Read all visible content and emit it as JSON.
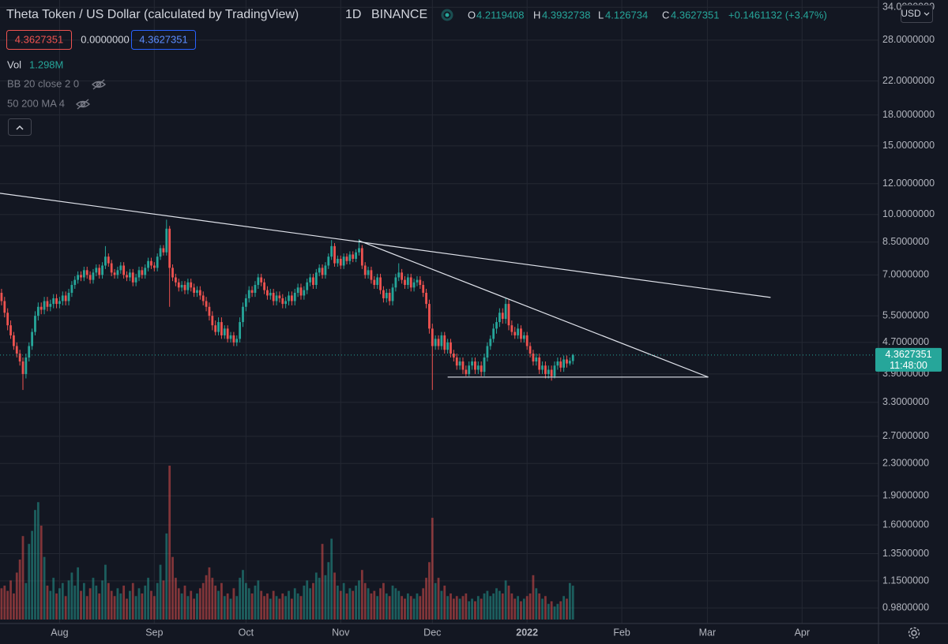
{
  "chart_data": {
    "type": "candlestick",
    "title": "Theta Token / US Dollar (calculated by TradingView)",
    "interval": "1D",
    "exchange": "BINANCE",
    "legend": {
      "open": "O",
      "high": "H",
      "low": "L",
      "close": "C"
    },
    "change_label": "+0.1461132 (+3.47%)",
    "sell_price": "4.3627351",
    "spread": "0.0000000",
    "buy_price": "4.3627351",
    "volume_legend_value": "1.298M",
    "indicators": [
      "BB 20 close 2 0",
      "50 200 MA 4"
    ],
    "currency": "USD",
    "countdown": "11:48:00",
    "log_scale": true,
    "grid": true,
    "up_color": "#26a69a",
    "down_color": "#ef5350",
    "xlim": [
      -0.5,
      287
    ],
    "xticks": [
      {
        "value": 19,
        "label": "Aug"
      },
      {
        "value": 50,
        "label": "Sep"
      },
      {
        "value": 80,
        "label": "Oct"
      },
      {
        "value": 111,
        "label": "Nov"
      },
      {
        "value": 141,
        "label": "Dec"
      },
      {
        "value": 172,
        "label": "2022"
      },
      {
        "value": 203,
        "label": "Feb"
      },
      {
        "value": 231,
        "label": "Mar"
      },
      {
        "value": 262,
        "label": "Apr"
      }
    ],
    "ylim": [
      0.894,
      35.5
    ],
    "yticks": [
      {
        "value": 34,
        "label": "34.0000000"
      },
      {
        "value": 28,
        "label": "28.0000000"
      },
      {
        "value": 22,
        "label": "22.0000000"
      },
      {
        "value": 18,
        "label": "18.0000000"
      },
      {
        "value": 15,
        "label": "15.0000000"
      },
      {
        "value": 12,
        "label": "12.0000000"
      },
      {
        "value": 10,
        "label": "10.0000000"
      },
      {
        "value": 8.5,
        "label": "8.5000000"
      },
      {
        "value": 7,
        "label": "7.0000000"
      },
      {
        "value": 5.5,
        "label": "5.5000000"
      },
      {
        "value": 4.7,
        "label": "4.7000000"
      },
      {
        "value": 3.9,
        "label": "3.9000000"
      },
      {
        "value": 3.3,
        "label": "3.3000000"
      },
      {
        "value": 2.7,
        "label": "2.7000000"
      },
      {
        "value": 2.3,
        "label": "2.3000000"
      },
      {
        "value": 1.9,
        "label": "1.9000000"
      },
      {
        "value": 1.6,
        "label": "1.6000000"
      },
      {
        "value": 1.35,
        "label": "1.3500000"
      },
      {
        "value": 1.15,
        "label": "1.1500000"
      },
      {
        "value": 0.98,
        "label": "0.9800000"
      }
    ],
    "trendlines": [
      {
        "x": [
          -0.5,
          251.7
        ],
        "y": [
          11.34,
          6.13
        ]
      },
      {
        "x": [
          117,
          231.3
        ],
        "y": [
          8.57,
          3.83
        ]
      },
      {
        "x": [
          146,
          231.3
        ],
        "y": [
          3.83,
          3.83
        ]
      }
    ],
    "ohlc": [
      [
        6.3,
        6.45,
        5.85,
        6.0
      ],
      [
        6.0,
        6.15,
        5.45,
        5.6
      ],
      [
        5.6,
        5.75,
        5.05,
        5.2
      ],
      [
        5.2,
        5.35,
        4.8,
        4.9
      ],
      [
        4.9,
        5.0,
        4.5,
        4.6
      ],
      [
        4.6,
        4.7,
        4.3,
        4.4
      ],
      [
        4.4,
        4.5,
        4.1,
        4.2
      ],
      [
        4.2,
        4.3,
        3.55,
        3.9
      ],
      [
        3.9,
        4.4,
        3.8,
        4.3
      ],
      [
        4.3,
        4.7,
        4.2,
        4.6
      ],
      [
        4.6,
        5.1,
        4.5,
        5.0
      ],
      [
        5.0,
        5.65,
        4.9,
        5.5
      ],
      [
        5.5,
        5.95,
        5.35,
        5.8
      ],
      [
        5.8,
        5.95,
        5.55,
        5.7
      ],
      [
        5.7,
        6.15,
        5.55,
        6.0
      ],
      [
        6.0,
        6.15,
        5.65,
        5.8
      ],
      [
        5.8,
        6.05,
        5.65,
        5.9
      ],
      [
        5.9,
        6.25,
        5.75,
        6.1
      ],
      [
        6.1,
        6.25,
        5.75,
        5.9
      ],
      [
        5.9,
        6.15,
        5.75,
        6.0
      ],
      [
        6.0,
        6.35,
        5.85,
        6.2
      ],
      [
        6.2,
        6.35,
        5.85,
        6.0
      ],
      [
        6.0,
        6.45,
        5.85,
        6.3
      ],
      [
        6.3,
        6.75,
        6.15,
        6.6
      ],
      [
        6.6,
        6.95,
        6.45,
        6.8
      ],
      [
        6.8,
        7.15,
        6.65,
        7.0
      ],
      [
        7.0,
        7.15,
        6.75,
        6.9
      ],
      [
        6.9,
        7.35,
        6.75,
        7.2
      ],
      [
        7.2,
        7.35,
        6.85,
        7.0
      ],
      [
        7.0,
        7.15,
        6.65,
        6.8
      ],
      [
        6.8,
        7.25,
        6.65,
        7.1
      ],
      [
        7.1,
        7.45,
        6.95,
        7.3
      ],
      [
        7.3,
        7.45,
        6.85,
        7.0
      ],
      [
        7.0,
        7.55,
        6.85,
        7.4
      ],
      [
        7.4,
        8.3,
        7.25,
        7.8
      ],
      [
        7.8,
        7.95,
        7.35,
        7.5
      ],
      [
        7.5,
        7.65,
        6.95,
        7.1
      ],
      [
        7.1,
        7.25,
        6.85,
        7.0
      ],
      [
        7.0,
        7.35,
        6.85,
        7.2
      ],
      [
        7.2,
        7.55,
        7.05,
        7.4
      ],
      [
        7.4,
        7.55,
        6.85,
        7.0
      ],
      [
        7.0,
        7.15,
        6.75,
        6.9
      ],
      [
        6.9,
        7.25,
        6.75,
        7.1
      ],
      [
        7.1,
        7.25,
        6.55,
        6.7
      ],
      [
        6.7,
        7.05,
        6.55,
        6.9
      ],
      [
        6.9,
        7.35,
        6.75,
        7.2
      ],
      [
        7.2,
        7.35,
        6.85,
        7.0
      ],
      [
        7.0,
        7.45,
        6.85,
        7.3
      ],
      [
        7.3,
        7.75,
        7.15,
        7.6
      ],
      [
        7.6,
        7.75,
        7.25,
        7.4
      ],
      [
        7.4,
        7.55,
        7.15,
        7.3
      ],
      [
        7.3,
        7.95,
        7.15,
        7.8
      ],
      [
        7.8,
        8.35,
        7.65,
        8.2
      ],
      [
        8.2,
        8.35,
        7.85,
        8.0
      ],
      [
        8.0,
        9.7,
        7.85,
        9.2
      ],
      [
        9.2,
        9.35,
        5.8,
        7.3
      ],
      [
        7.3,
        7.45,
        6.75,
        6.9
      ],
      [
        6.9,
        7.05,
        6.55,
        6.7
      ],
      [
        6.7,
        6.85,
        6.35,
        6.5
      ],
      [
        6.5,
        6.75,
        6.35,
        6.6
      ],
      [
        6.6,
        6.75,
        6.25,
        6.4
      ],
      [
        6.4,
        6.85,
        6.25,
        6.7
      ],
      [
        6.7,
        6.85,
        6.35,
        6.5
      ],
      [
        6.5,
        6.65,
        6.15,
        6.3
      ],
      [
        6.3,
        6.55,
        6.15,
        6.4
      ],
      [
        6.4,
        6.55,
        6.05,
        6.2
      ],
      [
        6.2,
        6.35,
        5.85,
        6.0
      ],
      [
        6.0,
        6.15,
        5.65,
        5.8
      ],
      [
        5.8,
        5.95,
        5.35,
        5.5
      ],
      [
        5.5,
        5.65,
        5.05,
        5.2
      ],
      [
        5.2,
        5.35,
        4.9,
        5.0
      ],
      [
        5.0,
        5.45,
        4.9,
        5.3
      ],
      [
        5.3,
        5.45,
        4.8,
        4.9
      ],
      [
        4.9,
        5.2,
        4.8,
        5.1
      ],
      [
        5.1,
        5.2,
        4.7,
        4.8
      ],
      [
        4.8,
        5.0,
        4.7,
        4.9
      ],
      [
        4.9,
        5.0,
        4.6,
        4.7
      ],
      [
        4.7,
        4.9,
        4.6,
        4.8
      ],
      [
        4.8,
        5.45,
        4.7,
        5.3
      ],
      [
        5.3,
        5.95,
        5.15,
        5.8
      ],
      [
        5.8,
        6.25,
        5.65,
        6.1
      ],
      [
        6.1,
        6.55,
        5.95,
        6.4
      ],
      [
        6.4,
        6.55,
        6.15,
        6.3
      ],
      [
        6.3,
        6.75,
        6.15,
        6.6
      ],
      [
        6.6,
        7.05,
        6.45,
        6.9
      ],
      [
        6.9,
        7.05,
        6.55,
        6.7
      ],
      [
        6.7,
        6.85,
        6.25,
        6.4
      ],
      [
        6.4,
        6.55,
        6.05,
        6.2
      ],
      [
        6.2,
        6.45,
        6.05,
        6.3
      ],
      [
        6.3,
        6.45,
        5.85,
        6.0
      ],
      [
        6.0,
        6.35,
        5.85,
        6.2
      ],
      [
        6.2,
        6.35,
        5.95,
        6.1
      ],
      [
        6.1,
        6.25,
        5.75,
        5.9
      ],
      [
        5.9,
        6.15,
        5.75,
        6.0
      ],
      [
        6.0,
        6.35,
        5.85,
        6.2
      ],
      [
        6.2,
        6.35,
        5.85,
        6.0
      ],
      [
        6.0,
        6.45,
        5.85,
        6.3
      ],
      [
        6.3,
        6.65,
        6.15,
        6.5
      ],
      [
        6.5,
        6.65,
        6.05,
        6.2
      ],
      [
        6.2,
        6.55,
        6.05,
        6.4
      ],
      [
        6.4,
        6.85,
        6.25,
        6.7
      ],
      [
        6.7,
        7.05,
        6.55,
        6.9
      ],
      [
        6.9,
        7.05,
        6.45,
        6.6
      ],
      [
        6.6,
        7.25,
        6.45,
        7.1
      ],
      [
        7.1,
        7.45,
        6.95,
        7.3
      ],
      [
        7.3,
        7.45,
        6.85,
        7.0
      ],
      [
        7.0,
        7.55,
        6.85,
        7.4
      ],
      [
        7.4,
        7.95,
        7.25,
        7.8
      ],
      [
        7.8,
        8.6,
        7.65,
        8.3
      ],
      [
        8.3,
        8.45,
        7.35,
        7.5
      ],
      [
        7.5,
        7.85,
        7.35,
        7.7
      ],
      [
        7.7,
        7.85,
        7.25,
        7.4
      ],
      [
        7.4,
        7.95,
        7.25,
        7.8
      ],
      [
        7.8,
        7.95,
        7.45,
        7.6
      ],
      [
        7.6,
        8.05,
        7.45,
        7.9
      ],
      [
        7.9,
        8.05,
        7.55,
        7.7
      ],
      [
        7.7,
        8.15,
        7.55,
        8.0
      ],
      [
        8.0,
        8.65,
        7.85,
        8.2
      ],
      [
        8.2,
        8.35,
        7.25,
        7.4
      ],
      [
        7.4,
        7.55,
        6.85,
        7.0
      ],
      [
        7.0,
        7.35,
        6.85,
        7.2
      ],
      [
        7.2,
        7.35,
        6.65,
        6.8
      ],
      [
        6.8,
        6.95,
        6.45,
        6.6
      ],
      [
        6.6,
        7.05,
        6.45,
        6.9
      ],
      [
        6.9,
        7.05,
        6.25,
        6.4
      ],
      [
        6.4,
        6.55,
        5.95,
        6.1
      ],
      [
        6.1,
        6.45,
        5.95,
        6.3
      ],
      [
        6.3,
        6.45,
        5.85,
        6.0
      ],
      [
        6.0,
        6.65,
        5.85,
        6.5
      ],
      [
        6.5,
        7.05,
        6.35,
        6.9
      ],
      [
        6.9,
        7.5,
        6.75,
        7.1
      ],
      [
        7.1,
        7.25,
        6.65,
        6.8
      ],
      [
        6.8,
        6.95,
        6.45,
        6.6
      ],
      [
        6.6,
        7.05,
        6.45,
        6.9
      ],
      [
        6.9,
        7.05,
        6.35,
        6.5
      ],
      [
        6.5,
        6.85,
        6.35,
        6.7
      ],
      [
        6.7,
        6.95,
        6.55,
        6.8
      ],
      [
        6.8,
        6.95,
        6.45,
        6.6
      ],
      [
        6.6,
        6.75,
        6.15,
        6.3
      ],
      [
        6.3,
        6.45,
        5.75,
        5.9
      ],
      [
        5.9,
        6.05,
        4.95,
        5.1
      ],
      [
        5.1,
        5.25,
        3.55,
        4.6
      ],
      [
        4.6,
        4.9,
        4.5,
        4.8
      ],
      [
        4.8,
        4.9,
        4.5,
        4.6
      ],
      [
        4.6,
        5.0,
        4.5,
        4.9
      ],
      [
        4.9,
        5.0,
        4.4,
        4.5
      ],
      [
        4.5,
        4.8,
        4.4,
        4.7
      ],
      [
        4.7,
        4.8,
        4.3,
        4.4
      ],
      [
        4.4,
        4.5,
        4.2,
        4.3
      ],
      [
        4.3,
        4.4,
        4.0,
        4.1
      ],
      [
        4.1,
        4.3,
        4.0,
        4.2
      ],
      [
        4.2,
        4.3,
        3.9,
        4.0
      ],
      [
        4.0,
        4.1,
        3.85,
        3.9
      ],
      [
        3.9,
        4.2,
        3.85,
        4.1
      ],
      [
        4.1,
        4.3,
        4.0,
        4.2
      ],
      [
        4.2,
        4.3,
        3.9,
        4.0
      ],
      [
        4.0,
        4.2,
        3.9,
        4.1
      ],
      [
        4.1,
        4.2,
        3.85,
        3.95
      ],
      [
        3.95,
        4.4,
        3.85,
        4.3
      ],
      [
        4.3,
        4.7,
        4.2,
        4.6
      ],
      [
        4.6,
        4.9,
        4.5,
        4.8
      ],
      [
        4.8,
        5.25,
        4.7,
        5.1
      ],
      [
        5.1,
        5.45,
        4.95,
        5.3
      ],
      [
        5.3,
        5.75,
        5.15,
        5.6
      ],
      [
        5.6,
        5.75,
        5.25,
        5.4
      ],
      [
        5.4,
        6.1,
        5.25,
        5.9
      ],
      [
        5.9,
        6.05,
        5.05,
        5.2
      ],
      [
        5.2,
        5.35,
        4.9,
        5.0
      ],
      [
        5.0,
        5.15,
        4.8,
        4.9
      ],
      [
        4.9,
        5.25,
        4.8,
        5.1
      ],
      [
        5.1,
        5.2,
        4.7,
        4.8
      ],
      [
        4.8,
        5.0,
        4.7,
        4.9
      ],
      [
        4.9,
        5.0,
        4.5,
        4.6
      ],
      [
        4.6,
        4.7,
        4.3,
        4.4
      ],
      [
        4.4,
        4.5,
        4.1,
        4.2
      ],
      [
        4.2,
        4.4,
        4.1,
        4.3
      ],
      [
        4.3,
        4.4,
        3.9,
        4.0
      ],
      [
        4.0,
        4.2,
        3.9,
        4.1
      ],
      [
        4.1,
        4.2,
        3.8,
        3.9
      ],
      [
        3.9,
        4.1,
        3.8,
        4.0
      ],
      [
        4.0,
        4.1,
        3.75,
        3.85
      ],
      [
        3.85,
        4.2,
        3.8,
        4.1
      ],
      [
        4.1,
        4.3,
        4.0,
        4.2
      ],
      [
        4.2,
        4.3,
        3.95,
        4.05
      ],
      [
        4.05,
        4.35,
        3.95,
        4.25
      ],
      [
        4.25,
        4.35,
        4.05,
        4.15
      ],
      [
        4.15,
        4.3,
        4.1,
        4.2166219
      ],
      [
        4.2119408,
        4.3932738,
        4.126734,
        4.3627351
      ]
    ],
    "volume": {
      "name": "Vol",
      "values": [
        1.2,
        1.3,
        1.1,
        1.5,
        1.0,
        1.8,
        2.3,
        3.2,
        1.4,
        2.9,
        3.4,
        4.2,
        4.5,
        3.6,
        2.4,
        1.3,
        1.1,
        1.6,
        1.0,
        1.2,
        1.4,
        0.9,
        1.5,
        1.8,
        1.3,
        2.0,
        1.1,
        1.4,
        0.9,
        1.2,
        1.6,
        1.3,
        1.0,
        1.5,
        2.1,
        1.4,
        1.1,
        0.9,
        1.2,
        1.0,
        1.3,
        0.8,
        1.1,
        1.4,
        0.9,
        1.2,
        1.0,
        1.3,
        1.6,
        1.1,
        0.9,
        1.4,
        2.1,
        1.5,
        3.3,
        5.9,
        2.4,
        1.6,
        1.2,
        1.0,
        1.3,
        0.9,
        1.1,
        0.8,
        1.0,
        1.2,
        1.4,
        1.7,
        2.0,
        1.6,
        1.3,
        1.1,
        1.4,
        0.9,
        1.0,
        0.8,
        1.2,
        0.9,
        1.6,
        1.9,
        1.4,
        1.2,
        1.0,
        1.3,
        1.5,
        1.1,
        0.9,
        1.0,
        0.8,
        1.1,
        0.9,
        0.8,
        1.0,
        0.9,
        1.1,
        0.8,
        1.2,
        1.0,
        0.9,
        1.3,
        1.5,
        1.2,
        1.4,
        1.8,
        1.6,
        2.9,
        1.7,
        2.2,
        3.1,
        1.8,
        1.3,
        1.1,
        1.4,
        1.0,
        1.2,
        1.1,
        1.3,
        1.5,
        1.9,
        1.4,
        1.2,
        1.0,
        1.1,
        0.9,
        1.2,
        1.4,
        1.0,
        0.9,
        1.3,
        1.2,
        1.1,
        0.9,
        0.8,
        1.0,
        0.9,
        0.8,
        1.0,
        0.9,
        1.2,
        1.6,
        2.2,
        3.9,
        1.4,
        1.6,
        1.1,
        1.3,
        0.9,
        1.0,
        0.8,
        0.9,
        0.8,
        0.9,
        1.0,
        0.7,
        0.8,
        0.7,
        0.9,
        0.8,
        1.0,
        1.1,
        0.9,
        1.0,
        1.2,
        1.1,
        1.0,
        1.5,
        1.3,
        1.0,
        0.8,
        0.9,
        0.7,
        0.8,
        0.9,
        1.0,
        1.7,
        1.2,
        1.0,
        0.8,
        0.9,
        0.6,
        0.7,
        0.5,
        0.6,
        0.7,
        0.9,
        0.8,
        1.4,
        1.298
      ]
    }
  }
}
